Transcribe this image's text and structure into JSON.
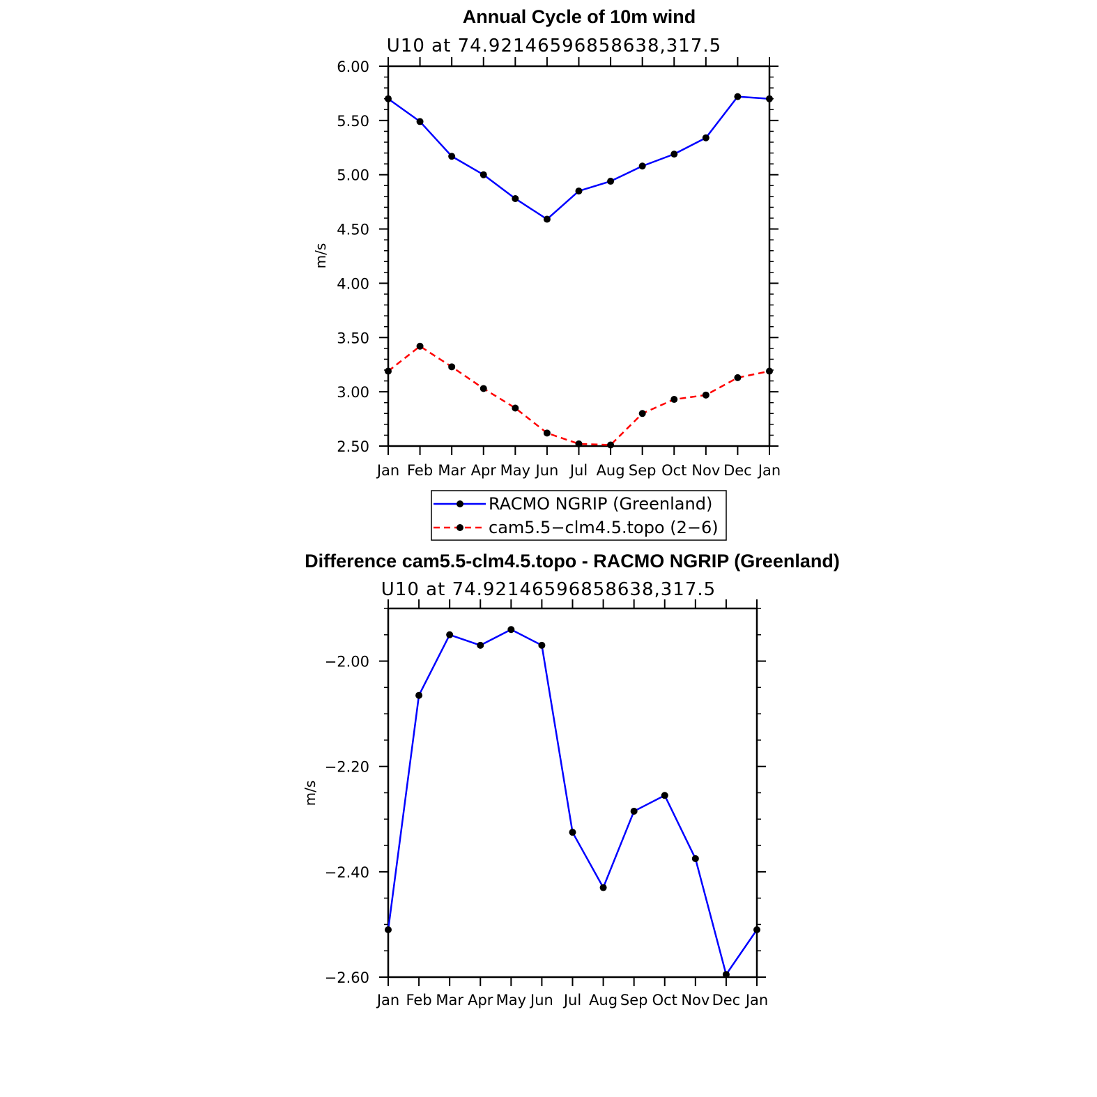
{
  "chart_data": [
    {
      "type": "line",
      "title": "Annual Cycle of 10m wind",
      "subtitle": "U10 at 74.92146596858638,317.5",
      "ylabel": "m/s",
      "xlabel": "",
      "categories": [
        "Jan",
        "Feb",
        "Mar",
        "Apr",
        "May",
        "Jun",
        "Jul",
        "Aug",
        "Sep",
        "Oct",
        "Nov",
        "Dec",
        "Jan"
      ],
      "ylim": [
        2.5,
        6.0
      ],
      "yticks": [
        "2.50",
        "3.00",
        "3.50",
        "4.00",
        "4.50",
        "5.00",
        "5.50",
        "6.00"
      ],
      "series": [
        {
          "name": "RACMO NGRIP (Greenland)",
          "color": "#0000ff",
          "dash": "solid",
          "values": [
            5.7,
            5.49,
            5.17,
            5.0,
            4.78,
            4.59,
            4.85,
            4.94,
            5.08,
            5.19,
            5.34,
            5.72,
            5.7
          ]
        },
        {
          "name": "cam5.5−clm4.5.topo (2−6)",
          "color": "#ff0000",
          "dash": "dashed",
          "values": [
            3.19,
            3.42,
            3.23,
            3.03,
            2.85,
            2.62,
            2.52,
            2.51,
            2.8,
            2.93,
            2.97,
            3.13,
            3.19
          ]
        }
      ],
      "legend_position": "bottom"
    },
    {
      "type": "line",
      "title": "Difference cam5.5-clm4.5.topo - RACMO NGRIP (Greenland)",
      "subtitle": "U10 at 74.92146596858638,317.5",
      "ylabel": "m/s",
      "xlabel": "",
      "categories": [
        "Jan",
        "Feb",
        "Mar",
        "Apr",
        "May",
        "Jun",
        "Jul",
        "Aug",
        "Sep",
        "Oct",
        "Nov",
        "Dec",
        "Jan"
      ],
      "ylim": [
        -2.6,
        -1.9
      ],
      "yticks": [
        "−2.60",
        "−2.40",
        "−2.20",
        "−2.00"
      ],
      "series": [
        {
          "name": "Difference",
          "color": "#0000ff",
          "dash": "solid",
          "values": [
            -2.51,
            -2.065,
            -1.95,
            -1.97,
            -1.94,
            -1.97,
            -2.325,
            -2.43,
            -2.285,
            -2.255,
            -2.375,
            -2.595,
            -2.51
          ]
        }
      ]
    }
  ]
}
